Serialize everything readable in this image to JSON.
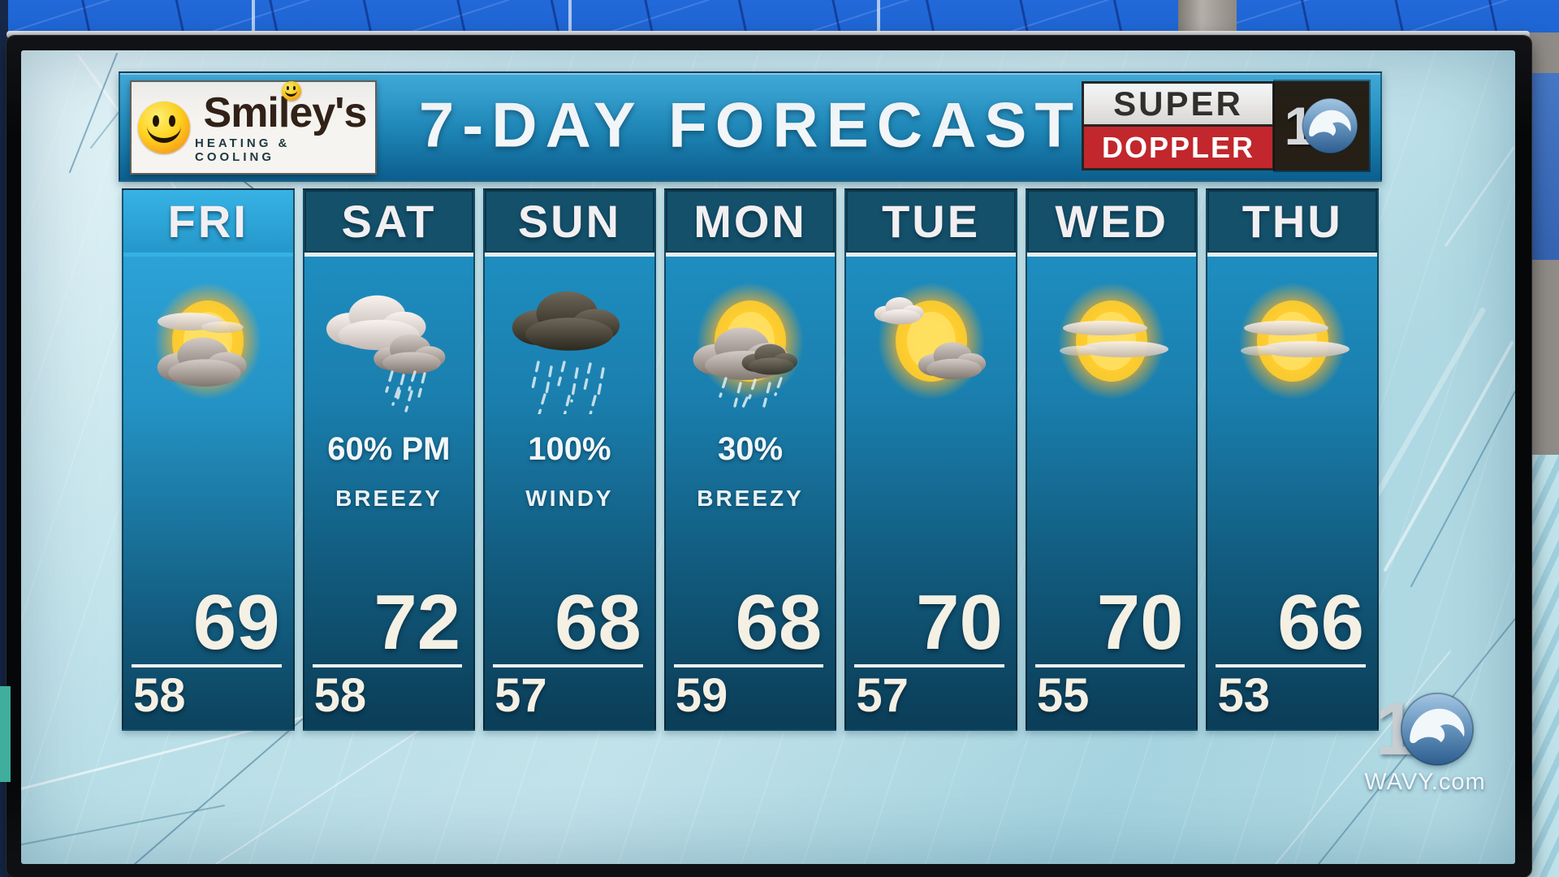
{
  "chart_data": {
    "type": "table",
    "title": "7-DAY FORECAST",
    "sponsor": "Smiley's HEATING & COOLING",
    "brand": "SUPER DOPPLER 10",
    "station": "WAVY.com",
    "columns": [
      "day",
      "precip_chance",
      "condition",
      "high_f",
      "low_f",
      "sky"
    ],
    "rows": [
      [
        "FRI",
        "",
        "",
        69,
        58,
        "sun behind clouds"
      ],
      [
        "SAT",
        "60% PM",
        "BREEZY",
        72,
        58,
        "showers"
      ],
      [
        "SUN",
        "100%",
        "WINDY",
        68,
        57,
        "dark rain cloud"
      ],
      [
        "MON",
        "30%",
        "BREEZY",
        68,
        59,
        "sun behind rain cloud"
      ],
      [
        "TUE",
        "",
        "",
        70,
        57,
        "sun with clouds"
      ],
      [
        "WED",
        "",
        "",
        70,
        55,
        "mostly sunny"
      ],
      [
        "THU",
        "",
        "",
        66,
        53,
        "mostly sunny"
      ]
    ]
  },
  "header": {
    "sponsor": {
      "name": "Smiley's",
      "tagline": "HEATING & COOLING",
      "icon": "smiley-face-icon"
    },
    "title": "7-DAY FORECAST",
    "brand": {
      "top": "SUPER",
      "bottom": "DOPPLER",
      "number_one": "1",
      "icon": "wave-10-icon"
    }
  },
  "forecast": {
    "days": [
      {
        "label": "FRI",
        "icon": "sun-behind-clouds",
        "precip": "",
        "condition": "",
        "high": "69",
        "low": "58",
        "today": true
      },
      {
        "label": "SAT",
        "icon": "showers-cloud",
        "precip": "60% PM",
        "condition": "BREEZY",
        "high": "72",
        "low": "58",
        "today": false
      },
      {
        "label": "SUN",
        "icon": "dark-rain-cloud",
        "precip": "100%",
        "condition": "WINDY",
        "high": "68",
        "low": "57",
        "today": false
      },
      {
        "label": "MON",
        "icon": "sun-rain-cloud",
        "precip": "30%",
        "condition": "BREEZY",
        "high": "68",
        "low": "59",
        "today": false
      },
      {
        "label": "TUE",
        "icon": "sun-with-clouds",
        "precip": "",
        "condition": "",
        "high": "70",
        "low": "57",
        "today": false
      },
      {
        "label": "WED",
        "icon": "sunny-wispy-clouds",
        "precip": "",
        "condition": "",
        "high": "70",
        "low": "55",
        "today": false
      },
      {
        "label": "THU",
        "icon": "sunny-wispy-clouds",
        "precip": "",
        "condition": "",
        "high": "66",
        "low": "53",
        "today": false
      }
    ]
  },
  "watermark": {
    "number_one": "1",
    "site": "WAVY.com",
    "icon": "wave-10-icon"
  },
  "colors": {
    "doppler_red": "#c1272d",
    "header_blue_top": "#44b1e0",
    "header_blue_bottom": "#0c5e8e",
    "column_teal_top": "#2094c8",
    "column_teal_bottom": "#0b3d57",
    "today_blue": "#2fa9de",
    "sun_yellow": "#ffc827",
    "screen_blue": "#bfe2ea",
    "wall_blue": "#1d64d2"
  }
}
